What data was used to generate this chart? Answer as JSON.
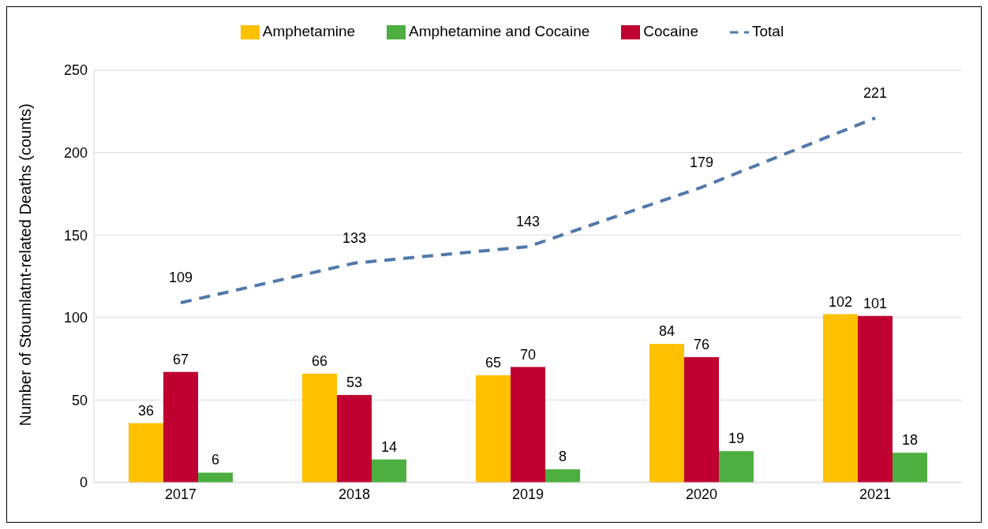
{
  "chart_data": {
    "type": "bar",
    "ylabel": "Number of Stoumlatnt-related Deaths (counts)",
    "categories": [
      "2017",
      "2018",
      "2019",
      "2020",
      "2021"
    ],
    "series": [
      {
        "name": "Amphetamine",
        "color": "#ffc000",
        "values": [
          36,
          66,
          65,
          84,
          102
        ]
      },
      {
        "name": "Cocaine",
        "color": "#c00030",
        "values": [
          67,
          53,
          70,
          76,
          101
        ]
      },
      {
        "name": "Amphetamine and Cocaine",
        "color": "#4caf3f",
        "values": [
          6,
          14,
          8,
          19,
          18
        ]
      },
      {
        "name": "Total",
        "type": "line",
        "color": "#5079aa",
        "line_style": "dashed",
        "values": [
          109,
          133,
          143,
          179,
          221
        ]
      }
    ],
    "ylim": [
      0,
      250
    ],
    "yticks": [
      0,
      50,
      100,
      150,
      200,
      250
    ],
    "grid": "y",
    "legend": "top",
    "marker": "none",
    "data_labels": true
  }
}
